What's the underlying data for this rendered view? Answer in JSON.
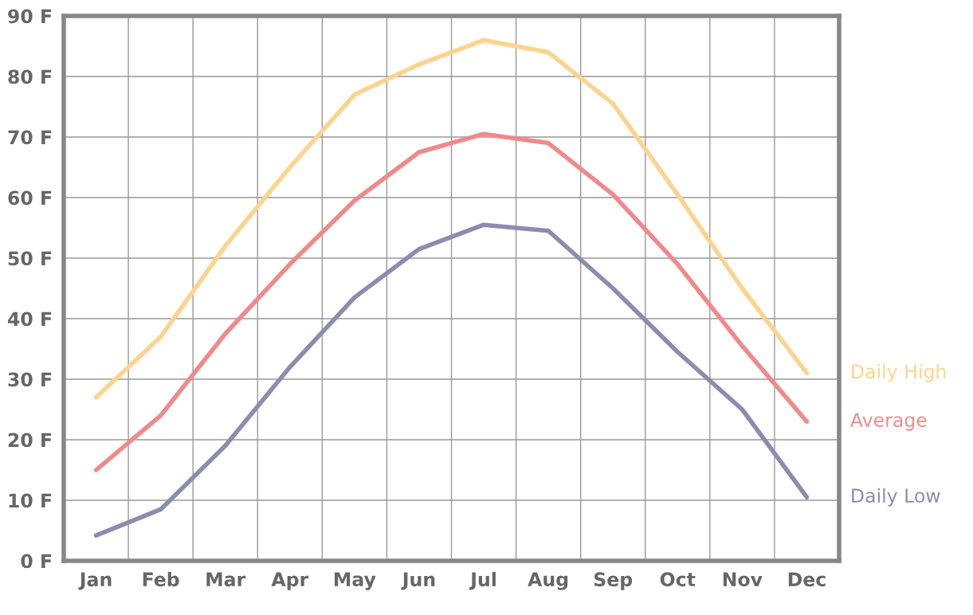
{
  "chart_data": {
    "type": "line",
    "categories": [
      "Jan",
      "Feb",
      "Mar",
      "Apr",
      "May",
      "Jun",
      "Jul",
      "Aug",
      "Sep",
      "Oct",
      "Nov",
      "Dec"
    ],
    "ylim": [
      0,
      90
    ],
    "yticks": [
      {
        "value": 0,
        "label": "0 F"
      },
      {
        "value": 10,
        "label": "10 F"
      },
      {
        "value": 20,
        "label": "20 F"
      },
      {
        "value": 30,
        "label": "30 F"
      },
      {
        "value": 40,
        "label": "40 F"
      },
      {
        "value": 50,
        "label": "50 F"
      },
      {
        "value": 60,
        "label": "60 F"
      },
      {
        "value": 70,
        "label": "70 F"
      },
      {
        "value": 80,
        "label": "80 F"
      },
      {
        "value": 90,
        "label": "90 F"
      }
    ],
    "grid": true,
    "legend": false,
    "marker": "none",
    "line_style": "solid",
    "series": [
      {
        "name": "Daily High",
        "color": "#fdd38f",
        "values": [
          27,
          37,
          52,
          65,
          77,
          82,
          86,
          84,
          75.5,
          60.5,
          45,
          31
        ]
      },
      {
        "name": "Average",
        "color": "#f08a8a",
        "values": [
          15,
          24,
          37.5,
          49,
          59.5,
          67.5,
          70.5,
          69,
          60.5,
          49,
          35.5,
          23
        ]
      },
      {
        "name": "Daily Low",
        "color": "#8c8cb0",
        "values": [
          4.2,
          8.5,
          19,
          32,
          43.5,
          51.5,
          55.5,
          54.5,
          45,
          34.5,
          25,
          10.5
        ]
      }
    ]
  }
}
